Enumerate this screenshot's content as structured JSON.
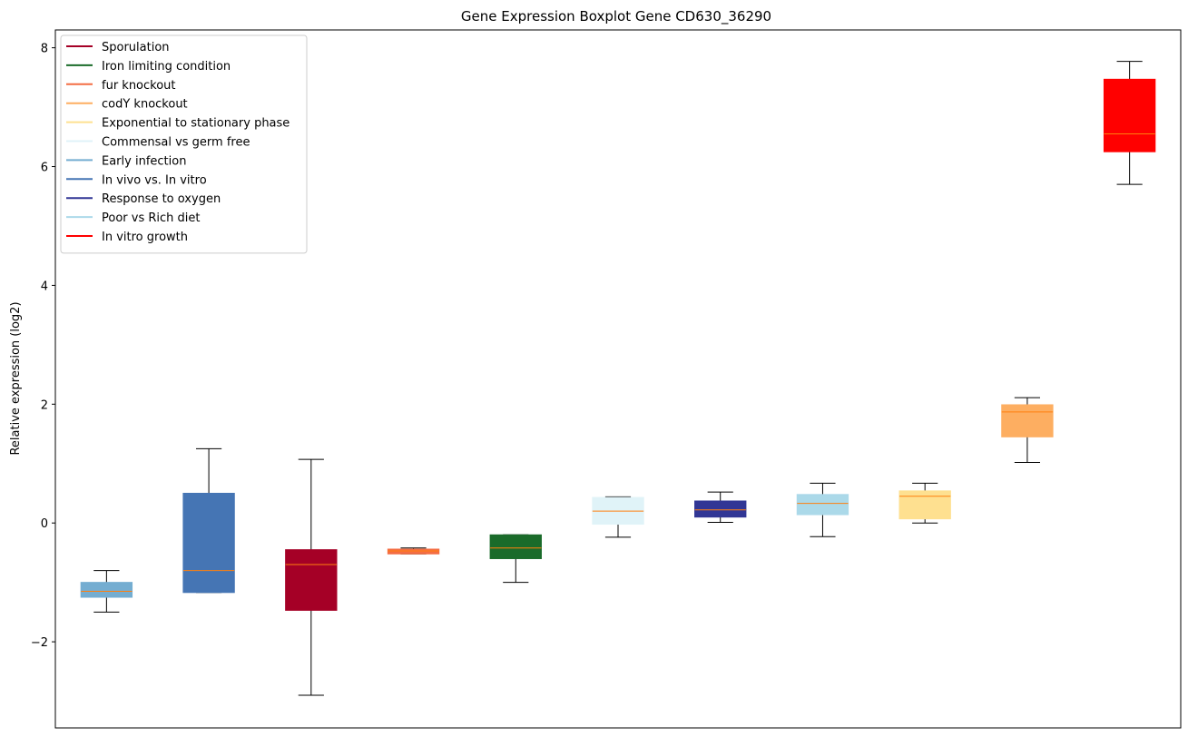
{
  "chart_data": {
    "type": "boxplot",
    "title": "Gene Expression Boxplot Gene CD630_36290",
    "xlabel": "",
    "ylabel": "Relative expression (log2)",
    "ylim": [
      -3.45,
      8.3
    ],
    "yticks": [
      {
        "value": -2,
        "label": "−2"
      },
      {
        "value": 0,
        "label": "0"
      },
      {
        "value": 2,
        "label": "2"
      },
      {
        "value": 4,
        "label": "4"
      },
      {
        "value": 6,
        "label": "6"
      },
      {
        "value": 8,
        "label": "8"
      }
    ],
    "xticks_shown": false,
    "grid": false,
    "legend_position": "top-left",
    "median_color": "#ff7f0e",
    "legend": [
      {
        "label": "Sporulation",
        "color": "#a50026"
      },
      {
        "label": "Iron limiting condition",
        "color": "#1a6b2a"
      },
      {
        "label": "fur knockout",
        "color": "#f46d43"
      },
      {
        "label": "codY knockout",
        "color": "#fdae61"
      },
      {
        "label": "Exponential to stationary phase",
        "color": "#fee090"
      },
      {
        "label": "Commensal vs germ free",
        "color": "#e0f3f8"
      },
      {
        "label": "Early infection",
        "color": "#74add1"
      },
      {
        "label": "In vivo vs. In vitro",
        "color": "#4575b4"
      },
      {
        "label": "Response to oxygen",
        "color": "#313695"
      },
      {
        "label": "Poor vs Rich diet",
        "color": "#abd9e9"
      },
      {
        "label": "In vitro growth",
        "color": "#ff0000"
      }
    ],
    "boxes": [
      {
        "group": "Early infection",
        "color": "#74add1",
        "whisker_low": -1.5,
        "q1": -1.25,
        "median": -1.15,
        "q3": -1.0,
        "whisker_high": -0.8
      },
      {
        "group": "In vivo vs. In vitro",
        "color": "#4575b4",
        "whisker_low": -1.17,
        "q1": -1.17,
        "median": -0.8,
        "q3": 0.5,
        "whisker_high": 1.25
      },
      {
        "group": "Sporulation",
        "color": "#a50026",
        "whisker_low": -2.9,
        "q1": -1.47,
        "median": -0.7,
        "q3": -0.45,
        "whisker_high": 1.07
      },
      {
        "group": "fur knockout",
        "color": "#f46d43",
        "whisker_low": -0.52,
        "q1": -0.52,
        "median": -0.47,
        "q3": -0.44,
        "whisker_high": -0.42
      },
      {
        "group": "Iron limiting condition",
        "color": "#1a6b2a",
        "whisker_low": -1.0,
        "q1": -0.6,
        "median": -0.42,
        "q3": -0.2,
        "whisker_high": -0.2
      },
      {
        "group": "Commensal vs germ free",
        "color": "#e0f3f8",
        "whisker_low": -0.24,
        "q1": -0.02,
        "median": 0.2,
        "q3": 0.43,
        "whisker_high": 0.44
      },
      {
        "group": "Response to oxygen",
        "color": "#313695",
        "whisker_low": 0.01,
        "q1": 0.1,
        "median": 0.22,
        "q3": 0.37,
        "whisker_high": 0.52
      },
      {
        "group": "Poor vs Rich diet",
        "color": "#abd9e9",
        "whisker_low": -0.23,
        "q1": 0.14,
        "median": 0.33,
        "q3": 0.48,
        "whisker_high": 0.67
      },
      {
        "group": "Exponential to stationary phase",
        "color": "#fee090",
        "whisker_low": 0.0,
        "q1": 0.07,
        "median": 0.45,
        "q3": 0.54,
        "whisker_high": 0.67
      },
      {
        "group": "codY knockout",
        "color": "#fdae61",
        "whisker_low": 1.02,
        "q1": 1.45,
        "median": 1.87,
        "q3": 1.99,
        "whisker_high": 2.11
      },
      {
        "group": "In vitro growth",
        "color": "#ff0000",
        "whisker_low": 5.7,
        "q1": 6.25,
        "median": 6.55,
        "q3": 7.47,
        "whisker_high": 7.77
      }
    ]
  }
}
